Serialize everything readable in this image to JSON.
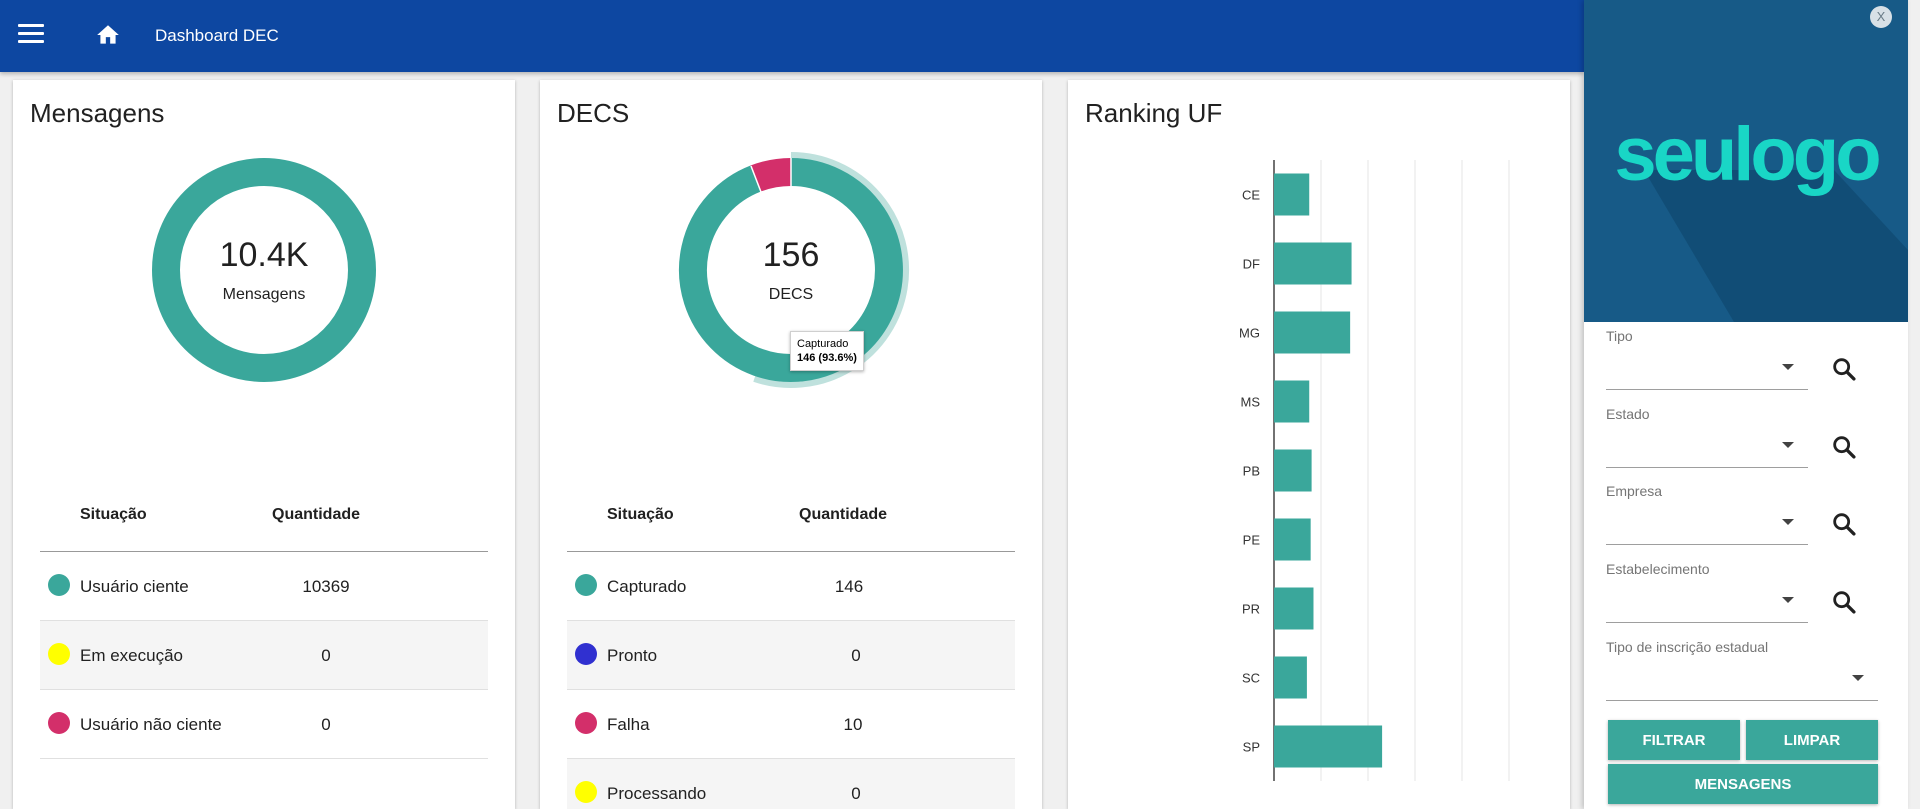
{
  "header": {
    "title": "Dashboard DEC",
    "menu_icon": "menu-icon",
    "home_icon": "home-icon",
    "bg_color": "#0d47a1"
  },
  "mensagens": {
    "title": "Mensagens",
    "center_value": "10.4K",
    "center_label": "Mensagens",
    "table": {
      "col_situacao": "Situação",
      "col_quantidade": "Quantidade",
      "rows": [
        {
          "label": "Usuário ciente",
          "value": "10369",
          "color": "#3aa79b"
        },
        {
          "label": "Em execução",
          "value": "0",
          "color": "#ffff00"
        },
        {
          "label": "Usuário não ciente",
          "value": "0",
          "color": "#d32f6a"
        }
      ]
    }
  },
  "decs": {
    "title": "DECS",
    "center_value": "156",
    "center_label": "DECS",
    "tooltip": {
      "line1": "Capturado",
      "line2": "146 (93.6%)"
    },
    "table": {
      "col_situacao": "Situação",
      "col_quantidade": "Quantidade",
      "rows": [
        {
          "label": "Capturado",
          "value": "146",
          "color": "#3aa79b"
        },
        {
          "label": "Pronto",
          "value": "0",
          "color": "#3030d0"
        },
        {
          "label": "Falha",
          "value": "10",
          "color": "#d32f6a"
        },
        {
          "label": "Processando",
          "value": "0",
          "color": "#ffff00"
        }
      ]
    }
  },
  "ranking": {
    "title": "Ranking UF"
  },
  "chart_data": {
    "type": "bar",
    "orientation": "horizontal",
    "categories": [
      "CE",
      "DF",
      "MG",
      "MS",
      "PB",
      "PE",
      "PR",
      "SC",
      "SP"
    ],
    "values": [
      7.5,
      16.5,
      16.2,
      7.5,
      8,
      7.8,
      8.4,
      7,
      23
    ],
    "xlim": [
      0,
      50
    ],
    "grid": true,
    "bar_color": "#3aa79b"
  },
  "panel": {
    "logo_text": "seulogo",
    "close_label": "X",
    "fields": [
      {
        "label": "Tipo",
        "value": ""
      },
      {
        "label": "Estado",
        "value": ""
      },
      {
        "label": "Empresa",
        "value": ""
      },
      {
        "label": "Estabelecimento",
        "value": ""
      },
      {
        "label": "Tipo de inscrição estadual",
        "value": ""
      }
    ],
    "buttons": {
      "filtrar": "FILTRAR",
      "limpar": "LIMPAR",
      "mensagens": "MENSAGENS"
    },
    "accent": "#3aa79b"
  }
}
